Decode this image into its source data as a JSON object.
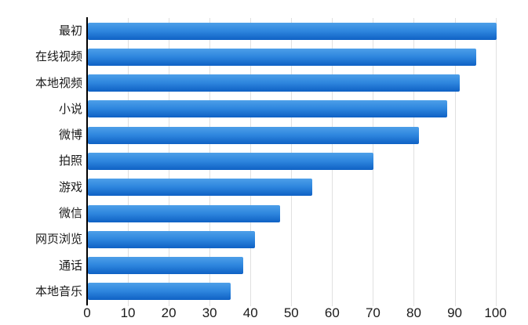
{
  "chart_data": {
    "type": "bar",
    "orientation": "horizontal",
    "title": "",
    "xlabel": "",
    "ylabel": "",
    "categories": [
      "最初",
      "在线视频",
      "本地视频",
      "小说",
      "微博",
      "拍照",
      "游戏",
      "微信",
      "网页浏览",
      "通话",
      "本地音乐"
    ],
    "values": [
      100,
      95,
      91,
      88,
      81,
      70,
      55,
      47,
      41,
      38,
      35
    ],
    "xlim": [
      0,
      100
    ],
    "xticks": [
      0,
      10,
      20,
      30,
      40,
      50,
      60,
      70,
      80,
      90,
      100
    ],
    "grid": true,
    "legend": false
  },
  "colors": {
    "background": "#ffffff",
    "bar_gradient_top": "#4d9fe9",
    "bar_gradient_mid": "#2e86de",
    "bar_gradient_bottom": "#0f61c4",
    "gridline": "#e0e0e0",
    "axis_line": "#000000",
    "tick_label": "#1a1a1a",
    "category_label": "#1a1a1a"
  }
}
